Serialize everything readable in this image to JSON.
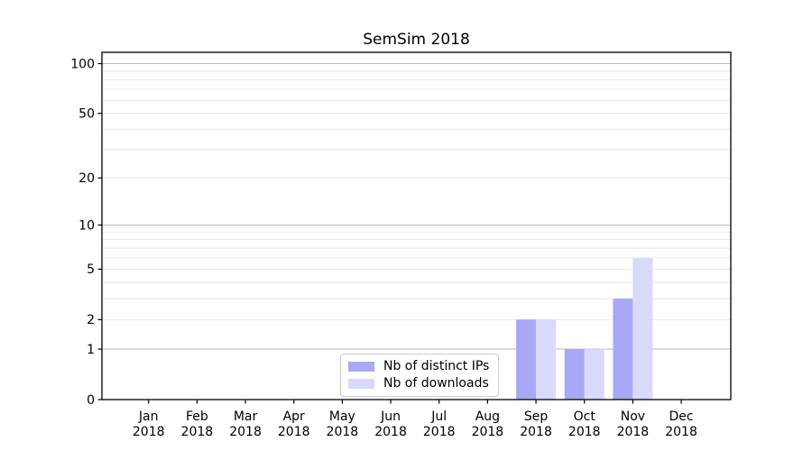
{
  "figure": {
    "background": "#ffffff"
  },
  "chart_data": {
    "type": "bar",
    "title": "SemSim 2018",
    "xlabel": "",
    "ylabel": "",
    "x_year": "2018",
    "months": [
      "Jan",
      "Feb",
      "Mar",
      "Apr",
      "May",
      "Jun",
      "Jul",
      "Aug",
      "Sep",
      "Oct",
      "Nov",
      "Dec"
    ],
    "series": [
      {
        "name": "Nb of distinct IPs",
        "color": "#a8a8f6",
        "values": [
          0,
          0,
          0,
          0,
          0,
          0,
          0,
          0,
          2,
          1,
          3,
          0
        ]
      },
      {
        "name": "Nb of downloads",
        "color": "#d9d9fa",
        "values": [
          0,
          0,
          0,
          0,
          0,
          0,
          0,
          0,
          2,
          1,
          6,
          0
        ]
      }
    ],
    "yscale": "log1p",
    "y_ticks": [
      0,
      1,
      2,
      5,
      10,
      20,
      50,
      100
    ],
    "y_tick_labels": [
      "0",
      "1",
      "2",
      "5",
      "10",
      "20",
      "50",
      "100"
    ],
    "y_major_grid": [
      1,
      10,
      100
    ],
    "y_minor_grid": [
      2,
      3,
      4,
      5,
      6,
      7,
      8,
      9,
      20,
      30,
      40,
      50,
      60,
      70,
      80,
      90
    ],
    "ylim": [
      0,
      117
    ],
    "grid": true,
    "legend_position": "lower center",
    "colors": {
      "major_grid": "#bdbdbd",
      "minor_grid": "#e8e8e8",
      "axis": "#000000",
      "tick_text": "#000000"
    }
  }
}
